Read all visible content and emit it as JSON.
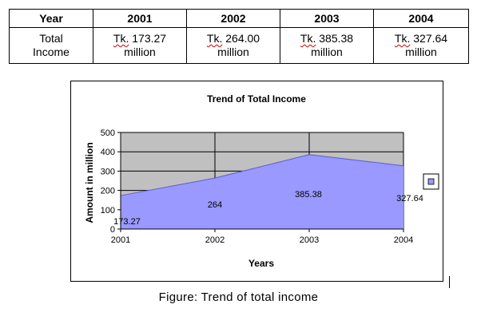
{
  "income_table": {
    "headers": [
      "Year",
      "2001",
      "2002",
      "2003",
      "2004"
    ],
    "row_label": [
      "Total",
      "Income"
    ],
    "cells": [
      {
        "prefix": "Tk.",
        "amount": "173.27",
        "unit": "million"
      },
      {
        "prefix": "Tk.",
        "amount": "264.00",
        "unit": "million"
      },
      {
        "prefix": "Tk.",
        "amount": "385.38",
        "unit": "million"
      },
      {
        "prefix": "Tk.",
        "amount": "327.64",
        "unit": "million"
      }
    ]
  },
  "chart_data": {
    "type": "area",
    "title": "Trend of Total Income",
    "xlabel": "Years",
    "ylabel": "Amount in million",
    "x": [
      "2001",
      "2002",
      "2003",
      "2004"
    ],
    "values": [
      173.27,
      264,
      385.38,
      327.64
    ],
    "data_labels": [
      "173.27",
      "264",
      "385.38",
      "327.64"
    ],
    "y_ticks": [
      "0",
      "100",
      "200",
      "300",
      "400",
      "500"
    ],
    "ylim": [
      0,
      500
    ],
    "grid": true,
    "legend": "right",
    "colors": {
      "area": "#9999ff",
      "plot_background": "#c0c0c0",
      "gridline": "#000000"
    }
  },
  "caption": "Figure: Trend of total income"
}
